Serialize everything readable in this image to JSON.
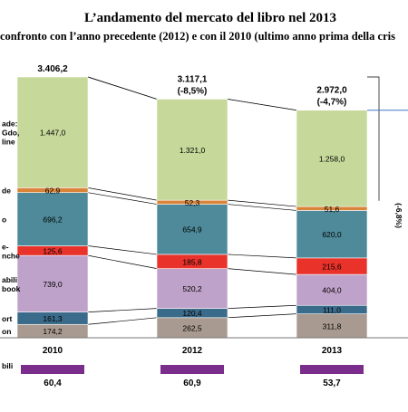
{
  "chart_data": {
    "type": "bar",
    "stacked": true,
    "title": "L’andamento del mercato del libro nel 2013",
    "subtitle": "confronto con l’anno precedente (2012) e con il 2010 (ultimo anno prima della cris",
    "categories": [
      "2010",
      "2012",
      "2013"
    ],
    "totals": [
      "3.406,2",
      "3.117,1",
      "2.972,0"
    ],
    "total_changes": [
      "",
      "(-8,5%)",
      "(-4,7%)"
    ],
    "series": [
      {
        "name": "on",
        "color": "#a89a90",
        "values": [
          174.2,
          262.5,
          311.8
        ],
        "labels": [
          "174,2",
          "262,5",
          "311,8"
        ]
      },
      {
        "name": "ort",
        "color": "#3b6b8a",
        "values": [
          161.3,
          120.4,
          111.0
        ],
        "labels": [
          "161,3",
          "120,4",
          "111,0"
        ]
      },
      {
        "name": "abili\nbook",
        "color": "#bfa2c9",
        "values": [
          739.0,
          520.2,
          404.0
        ],
        "labels": [
          "739,0",
          "520,2",
          "404,0"
        ]
      },
      {
        "name": "e-\nnche",
        "color": "#e8322a",
        "values": [
          125.6,
          185.8,
          215.6
        ],
        "labels": [
          "125,6",
          "185,8",
          "215,6"
        ]
      },
      {
        "name": "o",
        "color": "#4e8a99",
        "values": [
          696.2,
          654.9,
          620.0
        ],
        "labels": [
          "696,2",
          "654,9",
          "620,0"
        ]
      },
      {
        "name": "de",
        "color": "#d9843a",
        "values": [
          62.9,
          52.3,
          51.6
        ],
        "labels": [
          "62,9",
          "52,3",
          "51,6"
        ]
      },
      {
        "name": "ade:\nGdo,\nline",
        "color": "#c6d89a",
        "values": [
          1447.0,
          1321.0,
          1258.0
        ],
        "labels": [
          "1.447,0",
          "1.321,0",
          "1.258,0"
        ]
      }
    ],
    "side_annotation": "(-6,8%)",
    "bottom_row": {
      "label": "bili",
      "color": "#7b2d8b",
      "values": [
        "60,4",
        "60,9",
        "53,7"
      ]
    }
  }
}
